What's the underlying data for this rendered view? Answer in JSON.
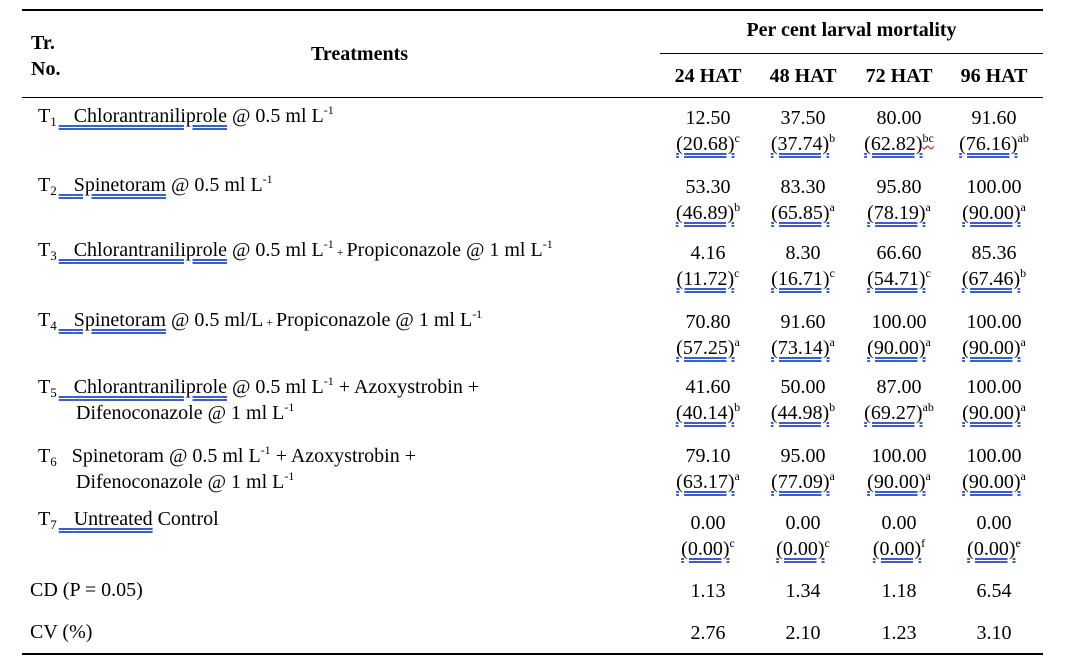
{
  "table": {
    "header": {
      "tr_no_line1": "Tr.",
      "tr_no_line2": "No.",
      "treatments": "Treatments",
      "group": "Per cent larval mortality",
      "cols": [
        "24 HAT",
        "48 HAT",
        "72 HAT",
        "96 HAT"
      ]
    },
    "rows": [
      {
        "t": "T",
        "n": "1",
        "name": "Chlorantraniliprole",
        "dose": " @ 0.5 ml L",
        "exp": "-1",
        "rest": "",
        "cells": [
          {
            "v": "12.50",
            "p": "(20.68)",
            "s": "c"
          },
          {
            "v": "37.50",
            "p": "(37.74)",
            "s": "b"
          },
          {
            "v": "80.00",
            "p": "(62.82)",
            "s": "bc"
          },
          {
            "v": "91.60",
            "p": "(76.16)",
            "s": "ab"
          }
        ]
      },
      {
        "t": "T",
        "n": "2",
        "name": "Spinetoram",
        "dose": " @ 0.5 ml L",
        "exp": "-1",
        "rest": "",
        "cells": [
          {
            "v": "53.30",
            "p": "(46.89)",
            "s": "b"
          },
          {
            "v": "83.30",
            "p": "(65.85)",
            "s": "a"
          },
          {
            "v": "95.80",
            "p": "(78.19)",
            "s": "a"
          },
          {
            "v": "100.00",
            "p": "(90.00)",
            "s": "a"
          }
        ]
      },
      {
        "t": "T",
        "n": "3",
        "name": "Chlorantraniliprole",
        "dose": " @ 0.5 ml L",
        "exp": "-1",
        "plus": " + ",
        "rest": "Propiconazole @ 1 ml L",
        "exp2": "-1",
        "cells": [
          {
            "v": "4.16",
            "p": "(11.72)",
            "s": "c"
          },
          {
            "v": "8.30",
            "p": "(16.71)",
            "s": "c"
          },
          {
            "v": "66.60",
            "p": "(54.71)",
            "s": "c"
          },
          {
            "v": "85.36",
            "p": "(67.46)",
            "s": "b"
          }
        ]
      },
      {
        "t": "T",
        "n": "4",
        "name": "Spinetoram",
        "dose": " @ 0.5 ml/L",
        "plus": " + ",
        "rest": "Propiconazole @ 1 ml L",
        "exp2": "-1",
        "cells": [
          {
            "v": "70.80",
            "p": "(57.25)",
            "s": "a"
          },
          {
            "v": "91.60",
            "p": "(73.14)",
            "s": "a"
          },
          {
            "v": "100.00",
            "p": "(90.00)",
            "s": "a"
          },
          {
            "v": "100.00",
            "p": "(90.00)",
            "s": "a"
          }
        ]
      },
      {
        "t": "T",
        "n": "5",
        "name": "Chlorantraniliprole",
        "dose": " @ 0.5 ml L",
        "exp": "-1",
        "rest": " + Azoxystrobin +",
        "line2": "Difenoconazole @ 1 ml L",
        "exp3": "-1",
        "cells": [
          {
            "v": "41.60",
            "p": "(40.14)",
            "s": "b"
          },
          {
            "v": "50.00",
            "p": "(44.98)",
            "s": "b"
          },
          {
            "v": "87.00",
            "p": "(69.27)",
            "s": "ab"
          },
          {
            "v": "100.00",
            "p": "(90.00)",
            "s": "a"
          }
        ]
      },
      {
        "t": "T",
        "n": "6",
        "name": "Spinetoram",
        "dose": " @ 0.5 ml L",
        "exp": "-1",
        "rest": " + Azoxystrobin +",
        "line2": "Difenoconazole @ 1 ml L",
        "exp3": "-1",
        "cells": [
          {
            "v": "79.10",
            "p": "(63.17)",
            "s": "a"
          },
          {
            "v": "95.00",
            "p": "(77.09)",
            "s": "a"
          },
          {
            "v": "100.00",
            "p": "(90.00)",
            "s": "a"
          },
          {
            "v": "100.00",
            "p": "(90.00)",
            "s": "a"
          }
        ]
      },
      {
        "t": "T",
        "n": "7",
        "name": "Untreated",
        "rest": " Control",
        "cells": [
          {
            "v": "0.00",
            "p": "(0.00)",
            "s": "c"
          },
          {
            "v": "0.00",
            "p": "(0.00)",
            "s": "c"
          },
          {
            "v": "0.00",
            "p": "(0.00)",
            "s": "f"
          },
          {
            "v": "0.00",
            "p": "(0.00)",
            "s": "e"
          }
        ]
      }
    ],
    "cd": {
      "label": "CD (P = 0.05)",
      "values": [
        "1.13",
        "1.34",
        "1.18",
        "6.54"
      ]
    },
    "cv": {
      "label": "CV (%)",
      "values": [
        "2.76",
        "2.10",
        "1.23",
        "3.10"
      ]
    }
  }
}
